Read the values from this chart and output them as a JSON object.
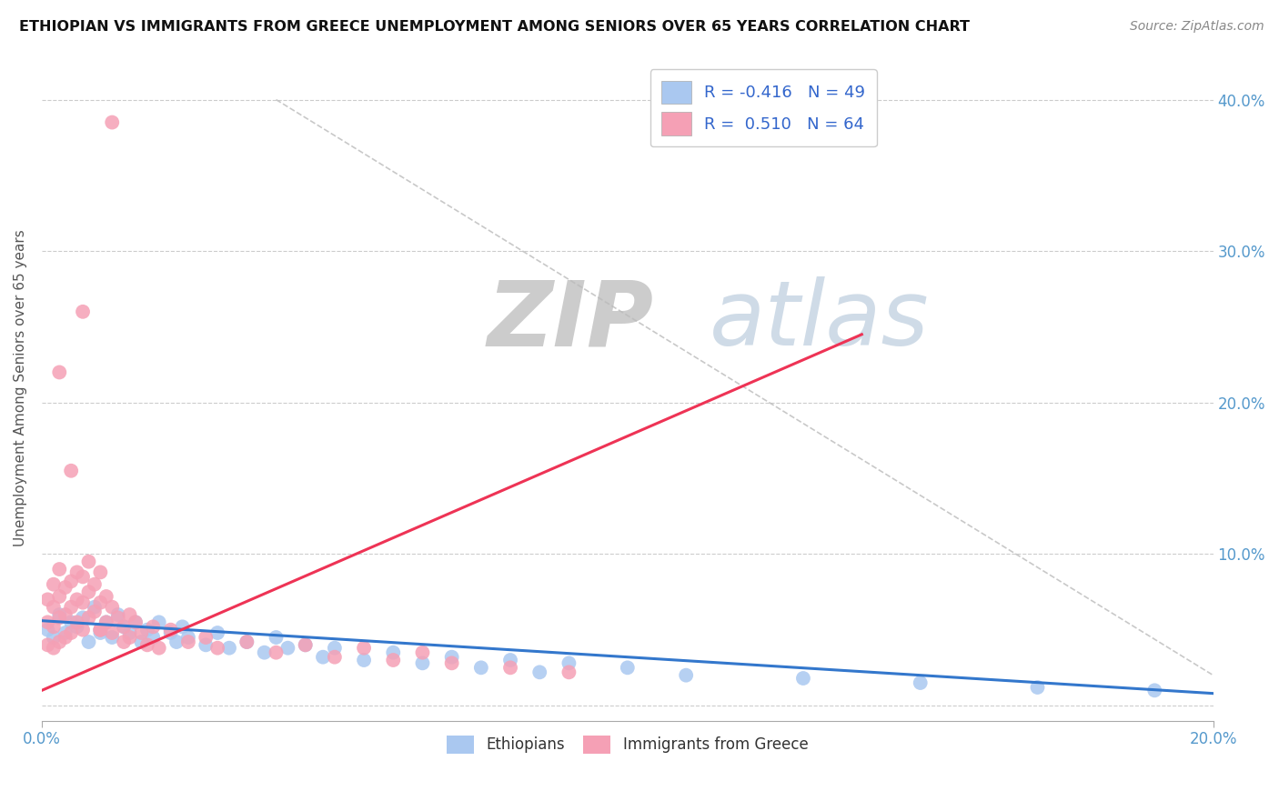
{
  "title": "ETHIOPIAN VS IMMIGRANTS FROM GREECE UNEMPLOYMENT AMONG SENIORS OVER 65 YEARS CORRELATION CHART",
  "source": "Source: ZipAtlas.com",
  "ylabel": "Unemployment Among Seniors over 65 years",
  "yticks": [
    "",
    "10.0%",
    "20.0%",
    "30.0%",
    "40.0%"
  ],
  "ytick_vals": [
    0.0,
    0.1,
    0.2,
    0.3,
    0.4
  ],
  "xlim": [
    0.0,
    0.2
  ],
  "ylim": [
    -0.01,
    0.43
  ],
  "legend_ethiopians_R": "-0.416",
  "legend_ethiopians_N": "49",
  "legend_greece_R": "0.510",
  "legend_greece_N": "64",
  "ethiopian_color": "#aac8f0",
  "greece_color": "#f5a0b5",
  "line_ethiopian_color": "#3377cc",
  "line_greece_color": "#ee3355",
  "background_color": "#ffffff",
  "eth_x": [
    0.001,
    0.002,
    0.003,
    0.004,
    0.005,
    0.006,
    0.007,
    0.008,
    0.009,
    0.01,
    0.01,
    0.011,
    0.012,
    0.013,
    0.014,
    0.015,
    0.016,
    0.017,
    0.018,
    0.019,
    0.02,
    0.022,
    0.023,
    0.024,
    0.025,
    0.028,
    0.03,
    0.032,
    0.035,
    0.038,
    0.04,
    0.042,
    0.045,
    0.048,
    0.05,
    0.055,
    0.06,
    0.065,
    0.07,
    0.075,
    0.08,
    0.085,
    0.09,
    0.1,
    0.11,
    0.13,
    0.15,
    0.17,
    0.19
  ],
  "eth_y": [
    0.05,
    0.045,
    0.06,
    0.048,
    0.055,
    0.052,
    0.058,
    0.042,
    0.065,
    0.05,
    0.048,
    0.055,
    0.045,
    0.06,
    0.052,
    0.048,
    0.055,
    0.042,
    0.05,
    0.045,
    0.055,
    0.048,
    0.042,
    0.052,
    0.045,
    0.04,
    0.048,
    0.038,
    0.042,
    0.035,
    0.045,
    0.038,
    0.04,
    0.032,
    0.038,
    0.03,
    0.035,
    0.028,
    0.032,
    0.025,
    0.03,
    0.022,
    0.028,
    0.025,
    0.02,
    0.018,
    0.015,
    0.012,
    0.01
  ],
  "gr_x": [
    0.001,
    0.001,
    0.001,
    0.002,
    0.002,
    0.002,
    0.002,
    0.003,
    0.003,
    0.003,
    0.003,
    0.004,
    0.004,
    0.004,
    0.005,
    0.005,
    0.005,
    0.006,
    0.006,
    0.006,
    0.007,
    0.007,
    0.007,
    0.008,
    0.008,
    0.008,
    0.009,
    0.009,
    0.01,
    0.01,
    0.01,
    0.011,
    0.011,
    0.012,
    0.012,
    0.013,
    0.014,
    0.014,
    0.015,
    0.015,
    0.016,
    0.017,
    0.018,
    0.019,
    0.02,
    0.022,
    0.025,
    0.028,
    0.03,
    0.035,
    0.04,
    0.045,
    0.05,
    0.055,
    0.06,
    0.065,
    0.07,
    0.08,
    0.09,
    0.01,
    0.003,
    0.005,
    0.007,
    0.012
  ],
  "gr_y": [
    0.04,
    0.055,
    0.07,
    0.038,
    0.052,
    0.065,
    0.08,
    0.042,
    0.058,
    0.072,
    0.09,
    0.045,
    0.06,
    0.078,
    0.048,
    0.065,
    0.082,
    0.055,
    0.07,
    0.088,
    0.05,
    0.068,
    0.085,
    0.058,
    0.075,
    0.095,
    0.062,
    0.08,
    0.068,
    0.088,
    0.05,
    0.072,
    0.055,
    0.065,
    0.048,
    0.058,
    0.052,
    0.042,
    0.06,
    0.045,
    0.055,
    0.048,
    0.04,
    0.052,
    0.038,
    0.05,
    0.042,
    0.045,
    0.038,
    0.042,
    0.035,
    0.04,
    0.032,
    0.038,
    0.03,
    0.035,
    0.028,
    0.025,
    0.022,
    0.05,
    0.22,
    0.155,
    0.26,
    0.385
  ],
  "gr_line_x0": 0.0,
  "gr_line_x1": 0.14,
  "gr_line_y0": 0.01,
  "gr_line_y1": 0.245,
  "eth_line_x0": 0.0,
  "eth_line_x1": 0.2,
  "eth_line_y0": 0.056,
  "eth_line_y1": 0.008
}
